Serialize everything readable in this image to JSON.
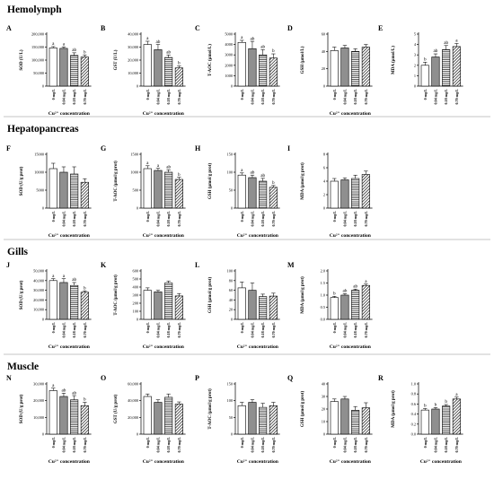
{
  "colors": {
    "g1": "#ffffff",
    "g2": "#8f8f8f",
    "g3": "hatch-horizontal",
    "g4": "hatch-diagonal"
  },
  "x_categories_panel_style_1": [
    "0 mg/L",
    "0.04 mg/L",
    "0.18 mg/L",
    "0.70 mg/L"
  ],
  "x_categories_panel_style_2": [
    "0 mg/L",
    "0.04 mg/L",
    "0.18 mg/L",
    "0.70 mg/L"
  ],
  "sections": [
    {
      "title": "Hemolymph"
    },
    {
      "title": "Hepatopancreas"
    },
    {
      "title": "Gills"
    },
    {
      "title": "Muscle"
    }
  ],
  "chart_data": [
    {
      "id": "A",
      "section": 0,
      "type": "bar",
      "ylabel": "SOD (U/L)",
      "xlabel": "Cu²⁺ concentration",
      "ylim": [
        0,
        200000
      ],
      "yticks": [
        "0",
        "50,000",
        "100,000",
        "150,000",
        "200,000"
      ],
      "categories": [
        "0 mg/L",
        "0.04 mg/L",
        "0.18 mg/L",
        "0.70 mg/L"
      ],
      "values": [
        147000,
        145000,
        118000,
        112000
      ],
      "errors": [
        5000,
        6000,
        10000,
        8000
      ],
      "letters": [
        "a",
        "a",
        "ab",
        "b"
      ]
    },
    {
      "id": "B",
      "section": 0,
      "type": "bar",
      "ylabel": "GST (U/L)",
      "xlabel": "Cu²⁺ concentration",
      "ylim": [
        0,
        40000
      ],
      "yticks": [
        "0",
        "10,000",
        "20,000",
        "30,000",
        "40,000"
      ],
      "categories": [
        "0 mg/L",
        "0.04 mg/L",
        "0.18 mg/L",
        "0.70 mg/L"
      ],
      "values": [
        32000,
        28000,
        22000,
        14000
      ],
      "errors": [
        2500,
        4000,
        2000,
        1500
      ],
      "letters": [
        "a",
        "ab",
        "ab",
        "b"
      ]
    },
    {
      "id": "C",
      "section": 0,
      "type": "bar",
      "ylabel": "T-AOC (μmol/L)",
      "xlabel": "",
      "ylim": [
        0,
        5000
      ],
      "yticks": [
        "0",
        "1000",
        "2000",
        "3000",
        "4000",
        "5000"
      ],
      "categories": [
        "0 mg/L",
        "0.04 mg/L",
        "0.18 mg/L",
        "0.70 mg/L"
      ],
      "values": [
        4200,
        3600,
        3000,
        2700
      ],
      "errors": [
        200,
        700,
        500,
        400
      ],
      "letters": [
        "a",
        "ab",
        "ab",
        "b"
      ]
    },
    {
      "id": "D",
      "section": 0,
      "type": "bar",
      "ylabel": "GSH (μmol/L)",
      "xlabel": "Cu²⁺ concentration",
      "ylim": [
        0,
        60
      ],
      "yticks": [
        "0",
        "20",
        "40",
        "60"
      ],
      "categories": [
        "0 mg/L",
        "0.04 mg/L",
        "0.18 mg/L",
        "0.70 mg/L"
      ],
      "values": [
        41,
        44,
        40,
        45
      ],
      "errors": [
        4,
        3,
        3,
        3
      ],
      "letters": [
        "",
        "",
        "",
        ""
      ]
    },
    {
      "id": "E",
      "section": 0,
      "type": "bar",
      "ylabel": "MDA (μmol/L)",
      "xlabel": "",
      "ylim": [
        0,
        5
      ],
      "yticks": [
        "0",
        "1",
        "2",
        "3",
        "4",
        "5"
      ],
      "categories": [
        "0 mg/L",
        "0.04 mg/L",
        "0.18 mg/L",
        "0.70 mg/L"
      ],
      "values": [
        2.0,
        2.8,
        3.5,
        3.8
      ],
      "errors": [
        0.3,
        0.3,
        0.4,
        0.3
      ],
      "letters": [
        "b",
        "ab",
        "ab",
        "a"
      ]
    },
    {
      "id": "F",
      "section": 1,
      "type": "bar",
      "ylabel": "SOD (U/g prot)",
      "xlabel": "Cu²⁺ concentration",
      "ylim": [
        0,
        15000
      ],
      "yticks": [
        "0",
        "5000",
        "10000",
        "15000"
      ],
      "categories": [
        "0 mg/L",
        "0.04 mg/L",
        "0.18 mg/L",
        "0.70 mg/L"
      ],
      "values": [
        11000,
        10000,
        9500,
        7200
      ],
      "errors": [
        1500,
        1500,
        2000,
        1000
      ],
      "letters": [
        "",
        "",
        "",
        ""
      ]
    },
    {
      "id": "G",
      "section": 1,
      "type": "bar",
      "ylabel": "T-AOC (μmol/g prot)",
      "xlabel": "Cu²⁺ concentration",
      "ylim": [
        0,
        1500
      ],
      "yticks": [
        "0",
        "500",
        "1000",
        "1500"
      ],
      "categories": [
        "0 mg/L",
        "0.04 mg/L",
        "0.18 mg/L",
        "0.70 mg/L"
      ],
      "values": [
        1100,
        1050,
        1000,
        800
      ],
      "errors": [
        80,
        60,
        70,
        60
      ],
      "letters": [
        "a",
        "a",
        "ab",
        "b"
      ]
    },
    {
      "id": "H",
      "section": 1,
      "type": "bar",
      "ylabel": "GSH (μmol/g prot)",
      "xlabel": "Cu²⁺ concentration",
      "ylim": [
        0,
        150
      ],
      "yticks": [
        "0",
        "50",
        "100",
        "150"
      ],
      "categories": [
        "0 mg/L",
        "0.04 mg/L",
        "0.18 mg/L",
        "0.70 mg/L"
      ],
      "values": [
        92,
        85,
        75,
        58
      ],
      "errors": [
        6,
        7,
        8,
        5
      ],
      "letters": [
        "a",
        "ab",
        "ab",
        "b"
      ]
    },
    {
      "id": "I",
      "section": 1,
      "type": "bar",
      "ylabel": "MDA (μmol/g prot)",
      "xlabel": "Cu²⁺ concentration",
      "ylim": [
        0,
        8
      ],
      "yticks": [
        "0",
        "2",
        "4",
        "6",
        "8"
      ],
      "categories": [
        "0 mg/L",
        "0.04 mg/L",
        "0.18 mg/L",
        "0.70 mg/L"
      ],
      "values": [
        4.0,
        4.2,
        4.4,
        5.0
      ],
      "errors": [
        0.4,
        0.3,
        0.5,
        0.5
      ],
      "letters": [
        "",
        "",
        "",
        ""
      ]
    },
    {
      "id": "J",
      "section": 2,
      "type": "bar",
      "ylabel": "SOD (U/g prot)",
      "xlabel": "Cu²⁺ concentration",
      "ylim": [
        0,
        50000
      ],
      "yticks": [
        "0",
        "10,000",
        "20,000",
        "30,000",
        "40,000",
        "50,000"
      ],
      "categories": [
        "0 mg/L",
        "0.04 mg/L",
        "0.18 mg/L",
        "0.70 mg/L"
      ],
      "values": [
        40000,
        38000,
        35000,
        28000
      ],
      "errors": [
        2000,
        4000,
        3000,
        1500
      ],
      "letters": [
        "a",
        "a",
        "ab",
        "b"
      ]
    },
    {
      "id": "K",
      "section": 2,
      "type": "bar",
      "ylabel": "T-AOC (μmol/g prot)",
      "xlabel": "Cu²⁺ concentration",
      "ylim": [
        0,
        600
      ],
      "yticks": [
        "0",
        "100",
        "200",
        "300",
        "400",
        "500",
        "600"
      ],
      "categories": [
        "0 mg/L",
        "0.04 mg/L",
        "0.18 mg/L",
        "0.70 mg/L"
      ],
      "values": [
        360,
        340,
        450,
        290
      ],
      "errors": [
        30,
        20,
        25,
        30
      ],
      "letters": [
        "",
        "",
        "",
        ""
      ]
    },
    {
      "id": "L",
      "section": 2,
      "type": "bar",
      "ylabel": "GSH (μmol/g prot)",
      "xlabel": "Cu²⁺ concentration",
      "ylim": [
        0,
        100
      ],
      "yticks": [
        "0",
        "20",
        "40",
        "60",
        "80",
        "100"
      ],
      "categories": [
        "0 mg/L",
        "0.04 mg/L",
        "0.18 mg/L",
        "0.70 mg/L"
      ],
      "values": [
        65,
        60,
        47,
        48
      ],
      "errors": [
        12,
        15,
        5,
        6
      ],
      "letters": [
        "",
        "",
        "",
        ""
      ]
    },
    {
      "id": "M",
      "section": 2,
      "type": "bar",
      "ylabel": "MDA (μmol/g prot)",
      "xlabel": "Cu²⁺ concentration",
      "ylim": [
        0,
        2.0
      ],
      "yticks": [
        "0.0",
        "0.5",
        "1.0",
        "1.5",
        "2.0"
      ],
      "categories": [
        "0 mg/L",
        "0.04 mg/L",
        "0.18 mg/L",
        "0.70 mg/L"
      ],
      "values": [
        0.9,
        1.0,
        1.2,
        1.4
      ],
      "errors": [
        0.05,
        0.06,
        0.05,
        0.06
      ],
      "letters": [
        "b",
        "ab",
        "ab",
        "a"
      ]
    },
    {
      "id": "N",
      "section": 3,
      "type": "bar",
      "ylabel": "SOD (U/g prot)",
      "xlabel": "Cu²⁺ concentration",
      "ylim": [
        0,
        30000
      ],
      "yticks": [
        "0",
        "10,000",
        "20,000",
        "30,000"
      ],
      "categories": [
        "0 mg/L",
        "0.04 mg/L",
        "0.18 mg/L",
        "0.70 mg/L"
      ],
      "values": [
        26000,
        22500,
        20500,
        17000
      ],
      "errors": [
        1500,
        2000,
        2500,
        2000
      ],
      "letters": [
        "a",
        "ab",
        "ab",
        "b"
      ]
    },
    {
      "id": "O",
      "section": 3,
      "type": "bar",
      "ylabel": "GST (U/g prot)",
      "xlabel": "Cu²⁺ concentration",
      "ylim": [
        0,
        60000
      ],
      "yticks": [
        "0",
        "20,000",
        "40,000",
        "60,000"
      ],
      "categories": [
        "0 mg/L",
        "0.04 mg/L",
        "0.18 mg/L",
        "0.70 mg/L"
      ],
      "values": [
        45000,
        38000,
        44000,
        36000
      ],
      "errors": [
        3000,
        3000,
        4000,
        2500
      ],
      "letters": [
        "",
        "",
        "",
        ""
      ]
    },
    {
      "id": "P",
      "section": 3,
      "type": "bar",
      "ylabel": "T-AOC (μmol/g prot)",
      "xlabel": "Cu²⁺ concentration",
      "ylim": [
        0,
        150
      ],
      "yticks": [
        "0",
        "50",
        "100",
        "150"
      ],
      "categories": [
        "0 mg/L",
        "0.04 mg/L",
        "0.18 mg/L",
        "0.70 mg/L"
      ],
      "values": [
        85,
        95,
        80,
        85
      ],
      "errors": [
        10,
        8,
        12,
        10
      ],
      "letters": [
        "",
        "",
        "",
        ""
      ]
    },
    {
      "id": "Q",
      "section": 3,
      "type": "bar",
      "ylabel": "GSH (μmol/g prot)",
      "xlabel": "Cu²⁺ concentration",
      "ylim": [
        0,
        40
      ],
      "yticks": [
        "0",
        "10",
        "20",
        "30",
        "40"
      ],
      "categories": [
        "0 mg/L",
        "0.04 mg/L",
        "0.18 mg/L",
        "0.70 mg/L"
      ],
      "values": [
        26,
        28,
        19,
        21
      ],
      "errors": [
        2,
        2,
        3,
        4
      ],
      "letters": [
        "",
        "",
        "",
        ""
      ]
    },
    {
      "id": "R",
      "section": 3,
      "type": "bar",
      "ylabel": "MDA (μmol/g prot)",
      "xlabel": "Cu²⁺ concentration",
      "ylim": [
        0,
        1.0
      ],
      "yticks": [
        "0.0",
        "0.2",
        "0.4",
        "0.6",
        "0.8",
        "1.0"
      ],
      "categories": [
        "0 mg/L",
        "0.04 mg/L",
        "0.18 mg/L",
        "0.70 mg/L"
      ],
      "values": [
        0.48,
        0.5,
        0.56,
        0.7
      ],
      "errors": [
        0.03,
        0.03,
        0.03,
        0.04
      ],
      "letters": [
        "b",
        "b",
        "b",
        "a"
      ]
    }
  ]
}
